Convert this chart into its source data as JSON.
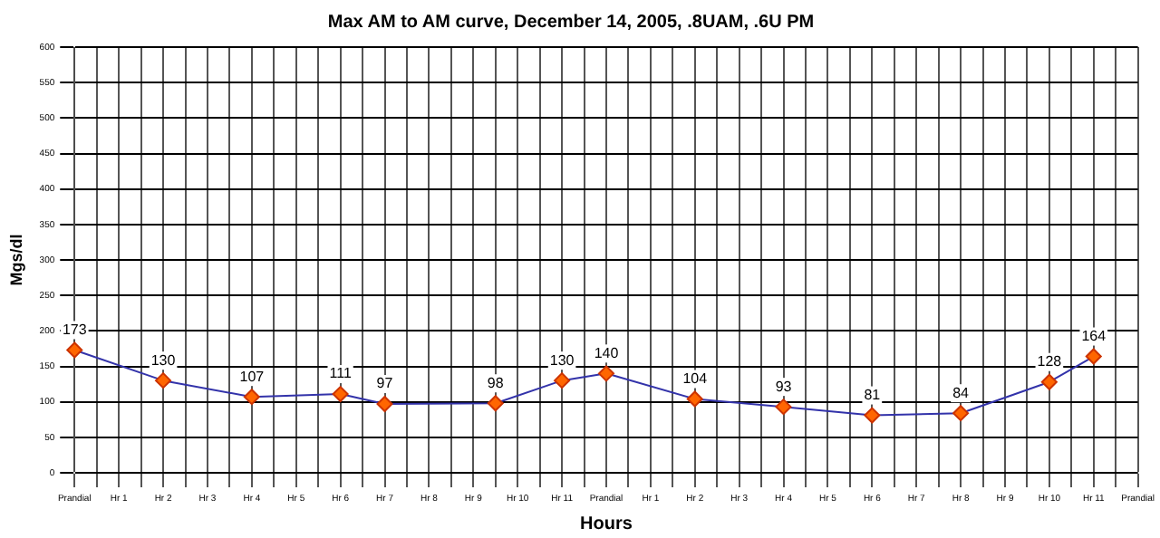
{
  "chart_data": {
    "type": "line",
    "title": "Max AM to AM curve, December 14, 2005, .8UAM, .6U PM",
    "xlabel": "Hours",
    "ylabel": "Mgs/dl",
    "categories": [
      "Prandial",
      null,
      "Hr 1",
      null,
      "Hr 2",
      null,
      "Hr 3",
      null,
      "Hr 4",
      null,
      "Hr 5",
      null,
      "Hr 6",
      null,
      "Hr 7",
      null,
      "Hr 8",
      null,
      "Hr 9",
      null,
      "Hr 10",
      null,
      "Hr 11",
      null,
      "Prandial",
      null,
      "Hr 1",
      null,
      "Hr 2",
      null,
      "Hr 3",
      null,
      "Hr 4",
      null,
      "Hr 5",
      null,
      "Hr 6",
      null,
      "Hr 7",
      null,
      "Hr 8",
      null,
      "Hr 9",
      null,
      "Hr 10",
      null,
      "Hr 11",
      null,
      "Prandial"
    ],
    "series": [
      {
        "color": "#3333aa",
        "values": [
          173,
          null,
          null,
          null,
          130,
          null,
          null,
          null,
          107,
          null,
          null,
          null,
          111,
          null,
          97,
          null,
          null,
          null,
          null,
          98,
          null,
          null,
          130,
          null,
          140,
          null,
          null,
          null,
          104,
          null,
          null,
          null,
          93,
          null,
          null,
          null,
          81,
          null,
          null,
          null,
          84,
          null,
          null,
          null,
          128,
          null,
          164,
          null,
          null
        ]
      }
    ],
    "ylim": [
      0,
      600
    ],
    "yticks": [
      0,
      50,
      100,
      150,
      200,
      250,
      300,
      350,
      400,
      450,
      500,
      550,
      600
    ],
    "grid": true,
    "marker": "diamond",
    "line_style": "solid",
    "data_labels": true,
    "legend": false
  }
}
